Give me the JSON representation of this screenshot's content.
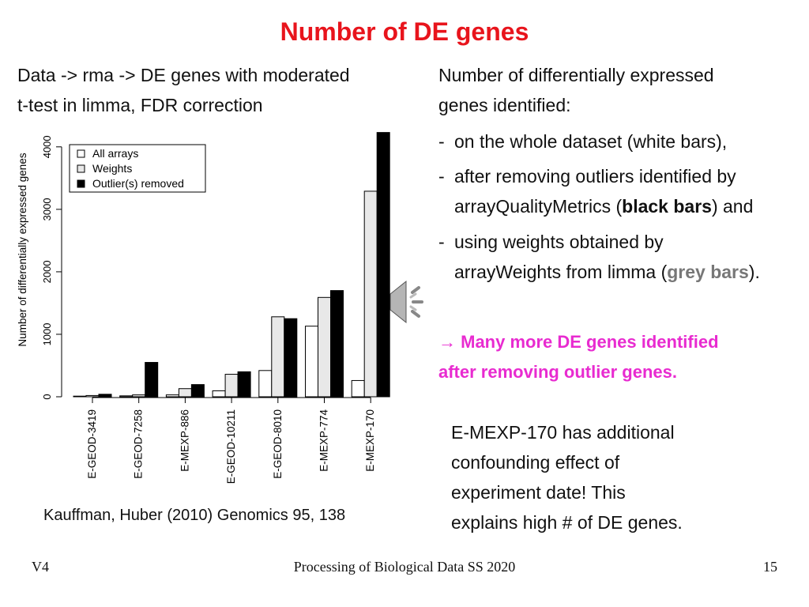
{
  "slide": {
    "title": "Number of DE genes",
    "left_desc_line1": "Data -> rma -> DE genes with moderated",
    "left_desc_line2": "t-test in limma, FDR correction",
    "right_desc_line1": "Number of differentially expressed",
    "right_desc_line2": "genes identified:",
    "bullet_dash": "-",
    "bullet1": "on the whole dataset (white bars),",
    "bullet2_line1": "after removing outliers identified by",
    "bullet2_pre": "arrayQualityMetrics (",
    "bullet2_bold": "black bars",
    "bullet2_post": ") and",
    "bullet3_line1": "using weights obtained by",
    "bullet3_pre": "arrayWeights from limma (",
    "bullet3_bold": "grey bars",
    "bullet3_post": ").",
    "highlight_line1": "→ Many more DE genes identified",
    "highlight_line2": "after removing outlier genes.",
    "note_line1": "E-MEXP-170  has additional",
    "note_line2": "confounding effect of",
    "note_line3": "experiment date! This",
    "note_line4": "explains high # of DE genes.",
    "citation": "Kauffman, Huber (2010) Genomics 95, 138",
    "footer_left": "V4",
    "footer_center": "Processing of Biological Data SS 2020",
    "footer_right": "15",
    "speaker_icon": "speaker-icon"
  },
  "colors": {
    "title": "#e8141c",
    "highlight": "#e82bd0",
    "grey_bars_text": "#777777",
    "all_arrays": "#ffffff",
    "weights": "#e8e8e8",
    "outliers_removed": "#000000"
  },
  "chart_data": {
    "type": "bar",
    "ylabel": "Number of differentially expressed genes",
    "ylim": [
      0,
      4200
    ],
    "yticks": [
      0,
      1000,
      2000,
      3000,
      4000
    ],
    "categories": [
      "E-GEOD-3419",
      "E-GEOD-7258",
      "E-MEXP-886",
      "E-GEOD-10211",
      "E-GEOD-8010",
      "E-MEXP-774",
      "E-MEXP-170"
    ],
    "series": [
      {
        "name": "All arrays",
        "values": [
          10,
          15,
          30,
          95,
          420,
          1130,
          260
        ]
      },
      {
        "name": "Weights",
        "values": [
          20,
          30,
          130,
          360,
          1280,
          1590,
          3290
        ]
      },
      {
        "name": "Outlier(s) removed",
        "values": [
          40,
          550,
          195,
          400,
          1250,
          1700,
          4230
        ]
      }
    ],
    "legend_position": "top-left",
    "grid": false
  }
}
